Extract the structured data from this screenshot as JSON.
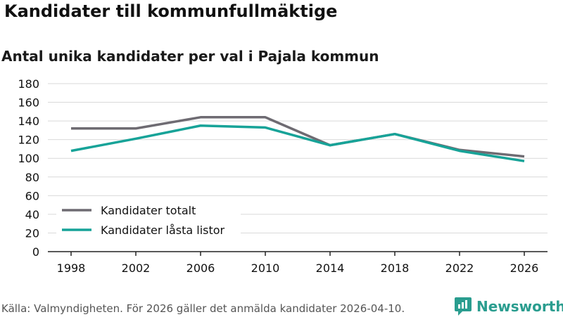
{
  "header": {
    "title": "Kandidater till kommunfullmäktige",
    "subtitle": "Antal unika kandidater per val i Pajala kommun"
  },
  "footer": {
    "source": "Källa: Valmyndigheten. För 2026 gäller det anmälda kandidater 2026-04-10.",
    "brand": "Newsworthy"
  },
  "colors": {
    "series_total": "#6e6b72",
    "series_locked": "#17a398",
    "grid": "#d9d9d9",
    "brand": "#2a9d8f"
  },
  "chart_data": {
    "type": "line",
    "title": "Kandidater till kommunfullmäktige",
    "subtitle": "Antal unika kandidater per val i Pajala kommun",
    "xlabel": "",
    "ylabel": "",
    "categories": [
      "1998",
      "2002",
      "2006",
      "2010",
      "2014",
      "2018",
      "2022",
      "2026"
    ],
    "ylim": [
      0,
      180
    ],
    "yticks": [
      0,
      20,
      40,
      60,
      80,
      100,
      120,
      140,
      160,
      180
    ],
    "grid": true,
    "legend_position": "bottom-left",
    "series": [
      {
        "name": "Kandidater totalt",
        "values": [
          132,
          132,
          144,
          144,
          114,
          126,
          109,
          102
        ]
      },
      {
        "name": "Kandidater låsta listor",
        "values": [
          108,
          121,
          135,
          133,
          114,
          126,
          108,
          97
        ]
      }
    ]
  }
}
